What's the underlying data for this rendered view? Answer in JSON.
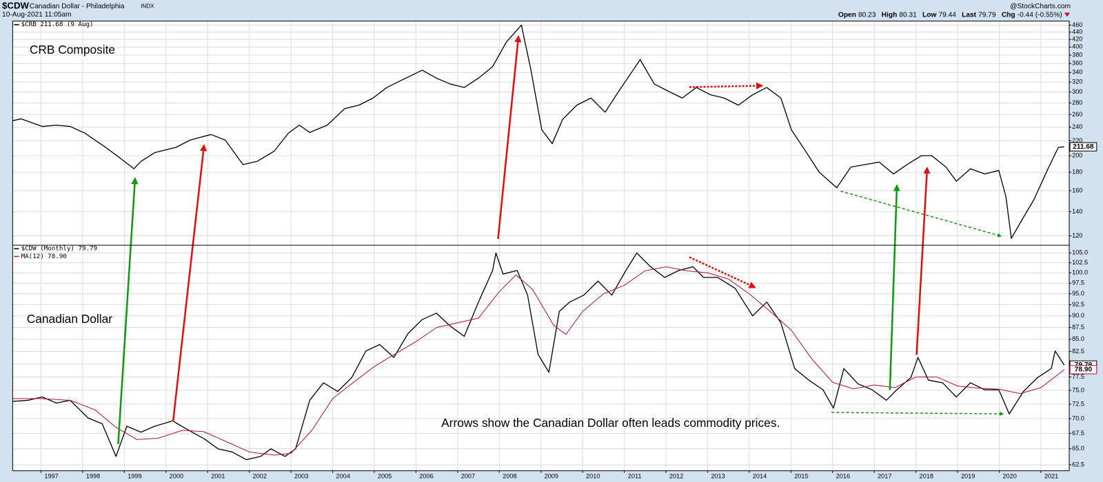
{
  "header": {
    "symbol": "$CDW",
    "title": "Canadian Dollar - Philadelphia",
    "exchange": "INDX",
    "date": "10-Aug-2021 11:05am",
    "credit": "@StockCharts.com",
    "quote": [
      {
        "label": "Open",
        "value": "80.23"
      },
      {
        "label": "High",
        "value": "80.31"
      },
      {
        "label": "Low",
        "value": "79.44"
      },
      {
        "label": "Last",
        "value": "79.79"
      },
      {
        "label": "Chg",
        "value": "-0.44 (-0.55%)"
      }
    ]
  },
  "chart_data": [
    {
      "type": "line",
      "yscale": "log",
      "ylim": [
        113,
        472
      ],
      "yticks": [
        120,
        140,
        160,
        180,
        200,
        220,
        240,
        260,
        280,
        300,
        320,
        340,
        360,
        380,
        400,
        420,
        440,
        460
      ],
      "grid": true,
      "annotations": [
        "CRB Composite"
      ],
      "series": [
        {
          "name": "$CRB 211.68 (9 Aug)",
          "color": "#000000",
          "last_value": 211.68,
          "x": [
            1996.32,
            1996.52,
            1997.03,
            1997.37,
            1997.7,
            1998.05,
            1998.55,
            1998.9,
            1999.23,
            1999.4,
            1999.73,
            2000.24,
            2000.58,
            2001.08,
            2001.42,
            2001.85,
            2002.19,
            2002.6,
            2002.94,
            2003.2,
            2003.45,
            2003.87,
            2004.29,
            2004.63,
            2004.97,
            2005.3,
            2005.64,
            2006.15,
            2006.49,
            2006.82,
            2007.16,
            2007.5,
            2007.84,
            2008.17,
            2008.53,
            2008.76,
            2009.02,
            2009.27,
            2009.52,
            2009.86,
            2010.2,
            2010.54,
            2010.87,
            2011.21,
            2011.38,
            2011.72,
            2012.05,
            2012.39,
            2012.73,
            2013.07,
            2013.4,
            2013.74,
            2014.08,
            2014.42,
            2014.76,
            2015.01,
            2015.35,
            2015.68,
            2016.1,
            2016.44,
            2016.78,
            2017.12,
            2017.46,
            2017.79,
            2018.13,
            2018.38,
            2018.72,
            2018.97,
            2019.31,
            2019.65,
            2019.99,
            2020.16,
            2020.29,
            2020.58,
            2020.83,
            2021.17,
            2021.42,
            2021.56
          ],
          "values": [
            250,
            253,
            241,
            243,
            241,
            231,
            211,
            197,
            184,
            193,
            204,
            211,
            221,
            229,
            221,
            189,
            193,
            206,
            231,
            243,
            232,
            243,
            270,
            276,
            289,
            309,
            323,
            345,
            328,
            316,
            309,
            328,
            353,
            413,
            460,
            345,
            236,
            216,
            252,
            276,
            289,
            264,
            302,
            345,
            369,
            316,
            302,
            289,
            309,
            295,
            289,
            276,
            295,
            309,
            289,
            236,
            206,
            180,
            163,
            186,
            189,
            192,
            178,
            189,
            200,
            200,
            186,
            170,
            184,
            178,
            182,
            154,
            118,
            135,
            151,
            184,
            211,
            211.68
          ]
        }
      ]
    },
    {
      "type": "line",
      "yscale": "log",
      "ylim": [
        61.6,
        107
      ],
      "yticks": [
        62.5,
        {
          "value": 65,
          "label": "65.0"
        },
        67.5,
        {
          "value": 70,
          "label": "70.0"
        },
        72.5,
        {
          "value": 75,
          "label": "75.0"
        },
        77.5,
        {
          "value": 80,
          "label": "80.0"
        },
        82.5,
        {
          "value": 85,
          "label": "85.0"
        },
        87.5,
        {
          "value": 90,
          "label": "90.0"
        },
        92.5,
        {
          "value": 95,
          "label": "95.0"
        },
        97.5,
        {
          "value": 100,
          "label": "100.0"
        },
        102.5,
        {
          "value": 105,
          "label": "105.0"
        }
      ],
      "xlim": [
        1996.32,
        2021.68
      ],
      "xticks": [
        1997,
        1998,
        1999,
        2000,
        2001,
        2002,
        2003,
        2004,
        2005,
        2006,
        2007,
        2008,
        2009,
        2010,
        2011,
        2012,
        2013,
        2014,
        2015,
        2016,
        2017,
        2018,
        2019,
        2020,
        2021
      ],
      "grid": true,
      "annotations": [
        "Canadian Dollar",
        "Arrows show the Canadian Dollar often leads commodity prices."
      ],
      "series": [
        {
          "name": "$CDW (Monthly) 79.79",
          "color": "#000000",
          "last_value": 79.79,
          "x": [
            1996.32,
            1996.69,
            1997.03,
            1997.37,
            1997.7,
            1998.13,
            1998.47,
            1998.8,
            1999.06,
            1999.4,
            1999.73,
            2000.16,
            2000.5,
            2000.92,
            2001.25,
            2001.59,
            2001.93,
            2002.27,
            2002.52,
            2002.86,
            2003.11,
            2003.45,
            2003.78,
            2004.12,
            2004.46,
            2004.8,
            2005.13,
            2005.47,
            2005.81,
            2006.15,
            2006.49,
            2006.82,
            2007.16,
            2007.5,
            2007.84,
            2007.92,
            2008.09,
            2008.43,
            2008.68,
            2008.93,
            2009.19,
            2009.44,
            2009.69,
            2010.03,
            2010.37,
            2010.7,
            2011.04,
            2011.3,
            2011.63,
            2011.97,
            2012.31,
            2012.65,
            2012.9,
            2013.24,
            2013.66,
            2014.08,
            2014.42,
            2014.76,
            2015.09,
            2015.43,
            2015.77,
            2016.02,
            2016.27,
            2016.61,
            2016.95,
            2017.29,
            2017.54,
            2017.88,
            2018.05,
            2018.3,
            2018.64,
            2018.97,
            2019.31,
            2019.65,
            2019.99,
            2020.24,
            2020.58,
            2020.92,
            2021.25,
            2021.34,
            2021.56
          ],
          "values": [
            73.0,
            73.2,
            73.8,
            72.7,
            73.2,
            70.1,
            69.1,
            63.8,
            68.7,
            67.7,
            68.7,
            69.6,
            68.2,
            66.6,
            65.0,
            64.5,
            63.3,
            63.8,
            65.0,
            63.8,
            65.0,
            73.2,
            76.4,
            74.8,
            77.4,
            82.6,
            83.9,
            81.3,
            86.2,
            89.2,
            90.6,
            87.8,
            85.6,
            93.1,
            100.6,
            105,
            99.7,
            100.6,
            94.7,
            81.9,
            78.4,
            91.0,
            93.1,
            94.7,
            98.0,
            94.7,
            100.6,
            105,
            101.5,
            98.9,
            100.6,
            101.5,
            98.9,
            98.9,
            96.3,
            90.0,
            93.1,
            88.5,
            79.1,
            76.9,
            75.1,
            71.8,
            79.1,
            76.2,
            75.1,
            73.2,
            75.1,
            77.4,
            81.3,
            76.9,
            76.4,
            73.8,
            76.4,
            75.1,
            75.1,
            70.8,
            74.8,
            77.4,
            79.1,
            82.6,
            79.79
          ]
        },
        {
          "name": "MA(12) 78.90",
          "color": "#b0103a",
          "last_value": {
            "value": 78.9,
            "label": "78.90"
          },
          "x": [
            1996.32,
            1997.0,
            1997.7,
            1998.3,
            1998.8,
            1999.3,
            1999.8,
            2000.4,
            2000.9,
            2001.5,
            2002.0,
            2002.6,
            2003.0,
            2003.5,
            2004.0,
            2004.5,
            2005.0,
            2005.5,
            2006.0,
            2006.5,
            2007.0,
            2007.5,
            2008.0,
            2008.4,
            2008.8,
            2009.3,
            2009.6,
            2010.0,
            2010.5,
            2011.0,
            2011.5,
            2012.0,
            2012.5,
            2013.0,
            2013.5,
            2014.0,
            2014.5,
            2015.0,
            2015.5,
            2016.0,
            2016.5,
            2017.0,
            2017.5,
            2018.0,
            2018.5,
            2019.0,
            2019.5,
            2020.0,
            2020.5,
            2021.0,
            2021.56
          ],
          "values": [
            73.5,
            73.5,
            73.2,
            71.5,
            68.5,
            66.5,
            66.7,
            68.0,
            67.8,
            66.0,
            64.5,
            64.0,
            64.3,
            68.0,
            73.5,
            76.5,
            79.5,
            82.0,
            84.5,
            87.5,
            88.5,
            89.5,
            95.5,
            99.5,
            96.0,
            88.0,
            86.0,
            91.0,
            95.0,
            97.0,
            100.5,
            101.5,
            100.5,
            100.0,
            98.5,
            95.0,
            91.0,
            87.0,
            81.0,
            76.5,
            75.3,
            76.0,
            75.5,
            77.5,
            77.5,
            75.8,
            75.4,
            75.2,
            74.4,
            75.5,
            78.9
          ]
        }
      ]
    }
  ]
}
